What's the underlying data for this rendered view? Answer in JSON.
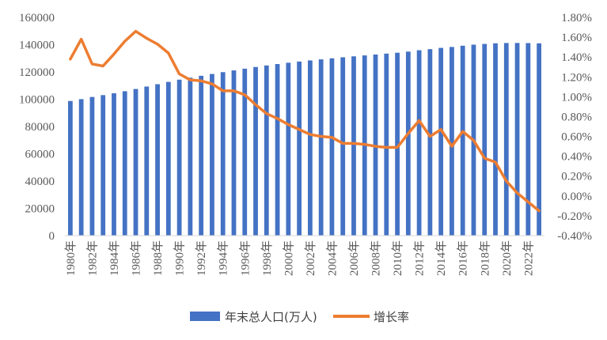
{
  "chart_data": {
    "type": "bar",
    "title": "",
    "x": [
      "1980年",
      "1981年",
      "1982年",
      "1983年",
      "1984年",
      "1985年",
      "1986年",
      "1987年",
      "1988年",
      "1989年",
      "1990年",
      "1991年",
      "1992年",
      "1993年",
      "1994年",
      "1995年",
      "1996年",
      "1997年",
      "1998年",
      "1999年",
      "2000年",
      "2001年",
      "2002年",
      "2003年",
      "2004年",
      "2005年",
      "2006年",
      "2007年",
      "2008年",
      "2009年",
      "2010年",
      "2011年",
      "2012年",
      "2013年",
      "2014年",
      "2015年",
      "2016年",
      "2017年",
      "2018年",
      "2019年",
      "2020年",
      "2021年",
      "2022年",
      "2023年"
    ],
    "x_tick_labels": [
      "1980年",
      "1982年",
      "1984年",
      "1986年",
      "1988年",
      "1990年",
      "1992年",
      "1994年",
      "1996年",
      "1998年",
      "2000年",
      "2002年",
      "2004年",
      "2006年",
      "2008年",
      "2010年",
      "2012年",
      "2014年",
      "2016年",
      "2018年",
      "2020年",
      "2022年"
    ],
    "series": [
      {
        "name": "年末总人口(万人)",
        "type": "bar",
        "axis": "left",
        "color": "#4472c4",
        "values": [
          98705,
          100072,
          101654,
          103008,
          104357,
          105851,
          107507,
          109300,
          111026,
          112704,
          114333,
          115823,
          117171,
          118517,
          119850,
          121121,
          122389,
          123626,
          124761,
          125786,
          126743,
          127627,
          128453,
          129227,
          129988,
          130756,
          131448,
          132129,
          132802,
          133450,
          134091,
          134916,
          135922,
          136726,
          137646,
          138326,
          139232,
          140011,
          140541,
          141008,
          141212,
          141260,
          141175,
          140967
        ]
      },
      {
        "name": "增长率",
        "type": "line",
        "axis": "right",
        "color": "#ed7d31",
        "values": [
          1.38,
          1.58,
          1.33,
          1.31,
          1.43,
          1.56,
          1.66,
          1.59,
          1.53,
          1.44,
          1.23,
          1.17,
          1.16,
          1.13,
          1.06,
          1.06,
          1.02,
          0.92,
          0.83,
          0.78,
          0.72,
          0.67,
          0.62,
          0.6,
          0.59,
          0.53,
          0.53,
          0.52,
          0.5,
          0.49,
          0.49,
          0.63,
          0.76,
          0.6,
          0.67,
          0.5,
          0.65,
          0.56,
          0.38,
          0.34,
          0.15,
          0.03,
          -0.06,
          -0.15
        ]
      }
    ],
    "y_left": {
      "min": 0,
      "max": 160000,
      "ticks": [
        "0",
        "20000",
        "40000",
        "60000",
        "80000",
        "100000",
        "120000",
        "140000",
        "160000"
      ]
    },
    "y_right": {
      "min": -0.4,
      "max": 1.8,
      "ticks": [
        "-0.40%",
        "-0.20%",
        "0.00%",
        "0.20%",
        "0.40%",
        "0.60%",
        "0.80%",
        "1.00%",
        "1.20%",
        "1.40%",
        "1.60%",
        "1.80%"
      ]
    },
    "grid": false,
    "legend": {
      "position": "bottom",
      "entries": [
        "年末总人口(万人)",
        "增长率"
      ]
    }
  }
}
